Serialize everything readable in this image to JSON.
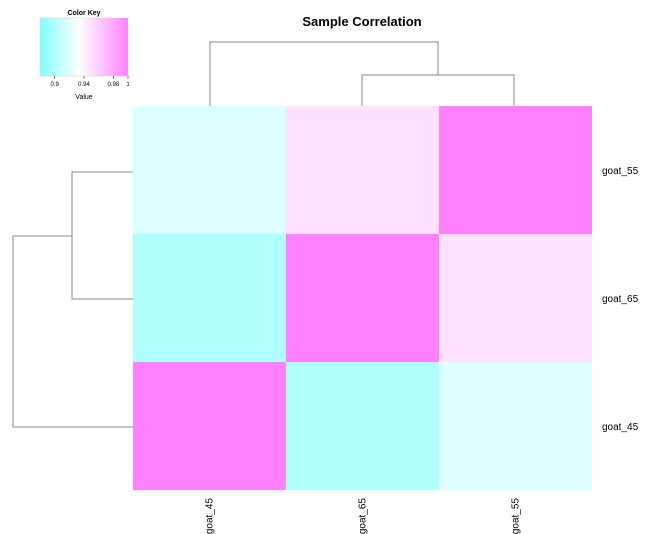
{
  "chart_data": {
    "type": "heatmap",
    "title": "Sample Correlation",
    "columns": [
      "goat_45",
      "goat_65",
      "goat_55"
    ],
    "rows": [
      "goat_55",
      "goat_65",
      "goat_45"
    ],
    "values": [
      [
        0.92,
        0.95,
        1.0
      ],
      [
        0.9,
        1.0,
        0.95
      ],
      [
        1.0,
        0.9,
        0.92
      ]
    ],
    "color_scale": {
      "min": 0.88,
      "max": 1.0,
      "low_color": "#80ffff",
      "mid_color": "#ffffff",
      "high_color": "#ff80ff"
    },
    "color_key": {
      "title": "Color Key",
      "ticks": [
        "0.9",
        "0.94",
        "0.98",
        "1"
      ],
      "label": "Value"
    },
    "column_dendrogram": true,
    "row_dendrogram": true
  }
}
